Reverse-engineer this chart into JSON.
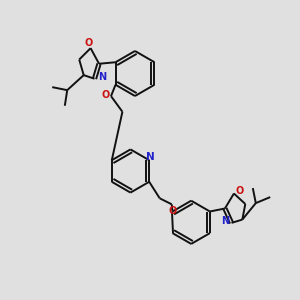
{
  "bg_color": "#e0e0e0",
  "bond_color": "#111111",
  "N_color": "#2222cc",
  "O_color": "#cc1111",
  "bond_width": 1.4,
  "figsize": [
    3.0,
    3.0
  ],
  "dpi": 100,
  "xlim": [
    0,
    10
  ],
  "ylim": [
    0,
    10
  ]
}
